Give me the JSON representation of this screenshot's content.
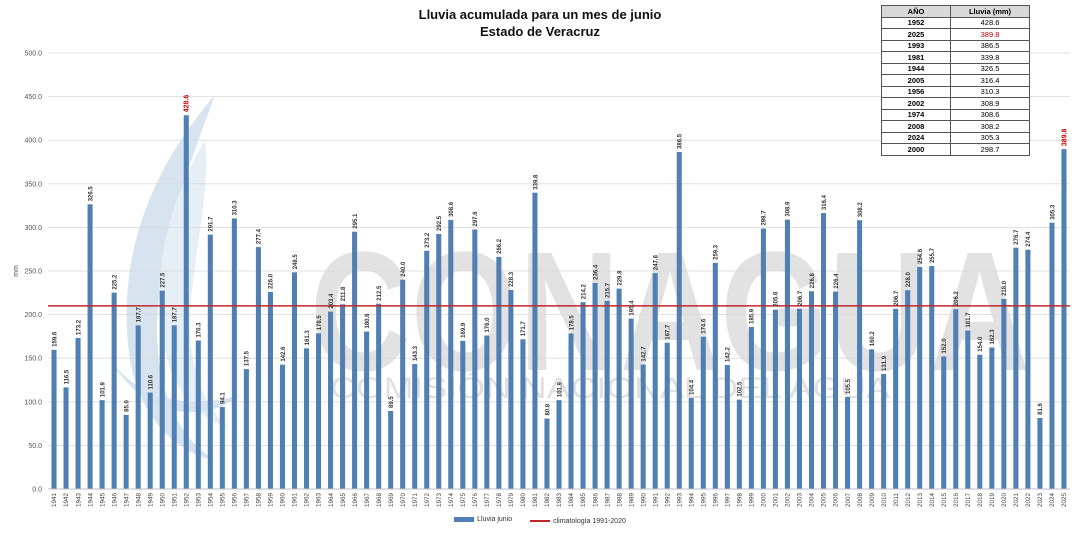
{
  "header": {
    "title": "Lluvia acumulada para un mes de junio",
    "subtitle": "Estado de Veracruz"
  },
  "watermark": {
    "brand": "CONAGUA",
    "tagline": "COMISIÓN NACIONAL DEL AGUA"
  },
  "ranking_table": {
    "col_year": "AÑO",
    "col_value": "Lluvia (mm)",
    "rows": [
      {
        "year": "1952",
        "value": "428.6"
      },
      {
        "year": "2025",
        "value": "389.8"
      },
      {
        "year": "1993",
        "value": "386.5"
      },
      {
        "year": "1981",
        "value": "339.8"
      },
      {
        "year": "1944",
        "value": "326.5"
      },
      {
        "year": "2005",
        "value": "316.4"
      },
      {
        "year": "1956",
        "value": "310.3"
      },
      {
        "year": "2002",
        "value": "308.9"
      },
      {
        "year": "1974",
        "value": "308.6"
      },
      {
        "year": "2008",
        "value": "308.2"
      },
      {
        "year": "2024",
        "value": "305.3"
      },
      {
        "year": "2000",
        "value": "298.7"
      }
    ],
    "highlight_year": "2025",
    "highlight_color": "#c00000"
  },
  "colors": {
    "bar": "#4f7fb3",
    "climatology_line": "#c0272d",
    "grid": "#d9d9d9",
    "highlight_label": "#c00000",
    "watermark": "#d9d9d9"
  },
  "chart_data": {
    "type": "bar",
    "title": "Lluvia acumulada para un mes de junio",
    "subtitle": "Estado de Veracruz",
    "xlabel": "",
    "ylabel": "mm",
    "ylim": [
      0,
      500
    ],
    "yticks": [
      "0.0",
      "50.0",
      "100.0",
      "150.0",
      "200.0",
      "250.0",
      "300.0",
      "350.0",
      "400.0",
      "450.0",
      "500.0"
    ],
    "grid": true,
    "legend_position": "bottom",
    "categories": [
      "1941",
      "1942",
      "1943",
      "1944",
      "1945",
      "1946",
      "1947",
      "1948",
      "1949",
      "1950",
      "1951",
      "1952",
      "1953",
      "1954",
      "1955",
      "1956",
      "1957",
      "1958",
      "1959",
      "1960",
      "1961",
      "1962",
      "1963",
      "1964",
      "1965",
      "1966",
      "1967",
      "1968",
      "1969",
      "1970",
      "1971",
      "1972",
      "1973",
      "1974",
      "1975",
      "1976",
      "1977",
      "1978",
      "1979",
      "1980",
      "1981",
      "1982",
      "1983",
      "1984",
      "1985",
      "1986",
      "1987",
      "1988",
      "1989",
      "1990",
      "1991",
      "1992",
      "1993",
      "1994",
      "1995",
      "1996",
      "1997",
      "1998",
      "1999",
      "2000",
      "2001",
      "2002",
      "2003",
      "2004",
      "2005",
      "2006",
      "2007",
      "2008",
      "2009",
      "2010",
      "2011",
      "2012",
      "2013",
      "2014",
      "2015",
      "2016",
      "2017",
      "2018",
      "2019",
      "2020",
      "2021",
      "2022",
      "2023",
      "2024",
      "2025"
    ],
    "series": [
      {
        "name": "Lluvia junio",
        "values": [
          159.6,
          116.5,
          173.2,
          326.5,
          101.9,
          225.2,
          85.0,
          187.7,
          110.6,
          227.5,
          187.7,
          428.6,
          170.3,
          291.7,
          94.1,
          310.3,
          137.5,
          277.4,
          226.0,
          142.6,
          248.5,
          161.3,
          178.5,
          203.4,
          211.8,
          295.1,
          180.6,
          212.5,
          89.5,
          240.0,
          143.3,
          273.2,
          292.5,
          308.6,
          169.9,
          297.6,
          176.0,
          266.2,
          228.3,
          171.7,
          339.8,
          80.8,
          101.9,
          178.5,
          214.2,
          236.4,
          215.7,
          229.8,
          195.4,
          142.7,
          247.6,
          167.7,
          386.5,
          104.4,
          174.6,
          259.3,
          142.2,
          102.5,
          185.9,
          298.7,
          205.6,
          308.9,
          206.7,
          226.8,
          316.4,
          226.4,
          105.5,
          308.2,
          160.2,
          131.9,
          206.7,
          228.0,
          254.6,
          255.7,
          152.0,
          206.2,
          181.7,
          154.0,
          162.3,
          218.0,
          276.7,
          274.4,
          81.6,
          305.3,
          389.8
        ]
      },
      {
        "name": "climatología 1991-2020",
        "type": "line",
        "value": 210.0
      }
    ],
    "highlighted_labels": [
      "1952",
      "2025"
    ]
  }
}
